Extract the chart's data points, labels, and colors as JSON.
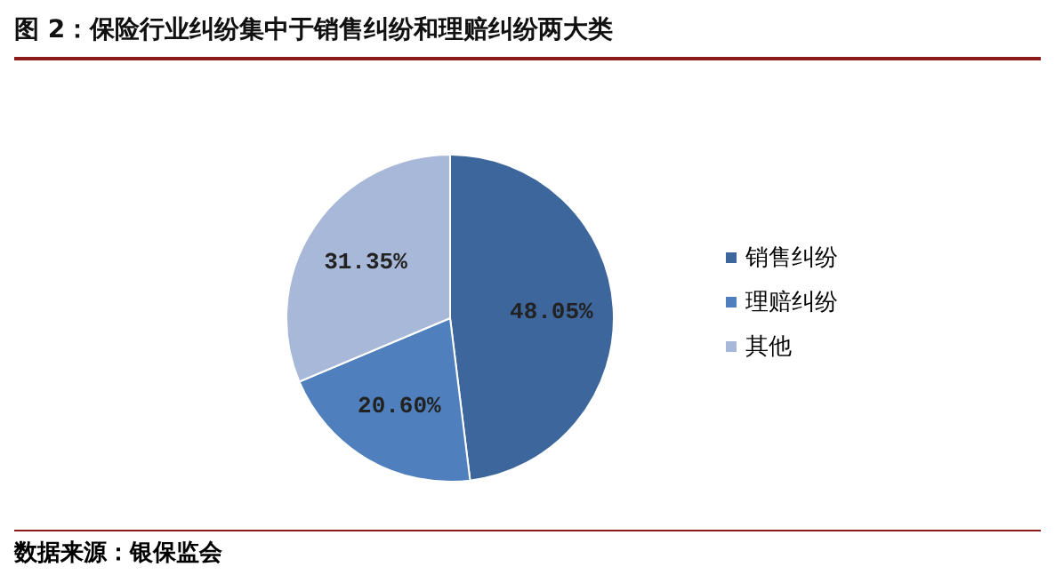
{
  "chart_data": {
    "type": "pie",
    "title": "图 2：保险行业纠纷集中于销售纠纷和理赔纠纷两大类",
    "categories": [
      "销售纠纷",
      "理赔纠纷",
      "其他"
    ],
    "values": [
      48.05,
      20.6,
      31.35
    ],
    "value_labels": [
      "48.05%",
      "20.60%",
      "31.35%"
    ],
    "colors": [
      "#3d679c",
      "#4f80bd",
      "#a8b8d8"
    ],
    "legend": "right",
    "annotations": [
      "数据来源：银保监会"
    ]
  }
}
